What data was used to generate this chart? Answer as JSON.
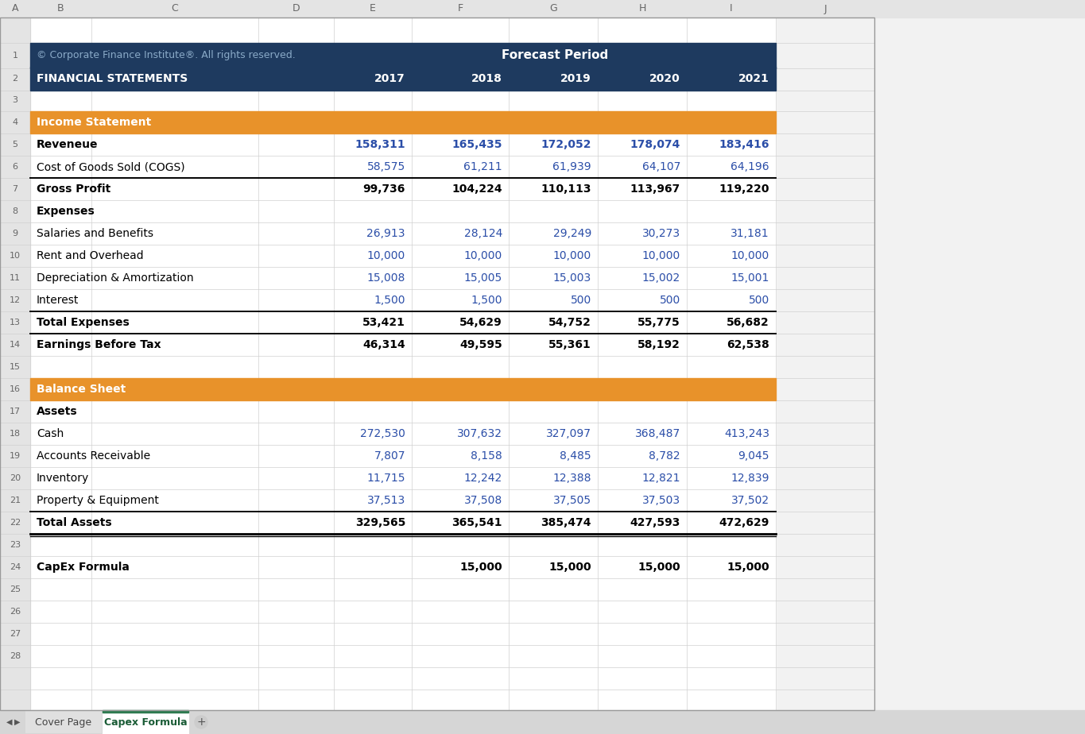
{
  "header_bg": "#1e3a5f",
  "orange_bg": "#e8922a",
  "blue_value_color": "#2b4ea8",
  "black_text": "#000000",
  "white_text": "#ffffff",
  "grid_line_color": "#d0d0d0",
  "sheet_bg": "#f2f2f2",
  "col_header_bg": "#e4e4e4",
  "col_header_text": "#666666",
  "copyright_color": "#8aaac8",
  "col_letters": [
    "A",
    "B",
    "C",
    "D",
    "E",
    "F",
    "G",
    "H",
    "I",
    "J"
  ],
  "row1_left": "© Corporate Finance Institute®. All rights reserved.",
  "row1_center": "Forecast Period",
  "fin_stmt_label": "FINANCIAL STATEMENTS",
  "years": [
    "2017",
    "2018",
    "2019",
    "2020",
    "2021"
  ],
  "rows": [
    {
      "row": 3,
      "label": "",
      "type": "empty",
      "values": [
        "",
        "",
        "",
        "",
        ""
      ]
    },
    {
      "row": 4,
      "label": "Income Statement",
      "type": "section_header",
      "values": [
        "",
        "",
        "",
        "",
        ""
      ]
    },
    {
      "row": 5,
      "label": "Reveneue",
      "bold": true,
      "values": [
        "158,311",
        "165,435",
        "172,052",
        "178,074",
        "183,416"
      ],
      "val_color": "blue"
    },
    {
      "row": 6,
      "label": "Cost of Goods Sold (COGS)",
      "bold": false,
      "values": [
        "58,575",
        "61,211",
        "61,939",
        "64,107",
        "64,196"
      ],
      "val_color": "blue",
      "bottom_border": true
    },
    {
      "row": 7,
      "label": "Gross Profit",
      "bold": true,
      "values": [
        "99,736",
        "104,224",
        "110,113",
        "113,967",
        "119,220"
      ],
      "val_color": "black",
      "top_border": true
    },
    {
      "row": 8,
      "label": "Expenses",
      "bold": true,
      "values": [
        "",
        "",
        "",
        "",
        ""
      ],
      "val_color": "black"
    },
    {
      "row": 9,
      "label": "Salaries and Benefits",
      "bold": false,
      "values": [
        "26,913",
        "28,124",
        "29,249",
        "30,273",
        "31,181"
      ],
      "val_color": "blue"
    },
    {
      "row": 10,
      "label": "Rent and Overhead",
      "bold": false,
      "values": [
        "10,000",
        "10,000",
        "10,000",
        "10,000",
        "10,000"
      ],
      "val_color": "blue"
    },
    {
      "row": 11,
      "label": "Depreciation & Amortization",
      "bold": false,
      "values": [
        "15,008",
        "15,005",
        "15,003",
        "15,002",
        "15,001"
      ],
      "val_color": "blue"
    },
    {
      "row": 12,
      "label": "Interest",
      "bold": false,
      "values": [
        "1,500",
        "1,500",
        "500",
        "500",
        "500"
      ],
      "val_color": "blue",
      "bottom_border": true
    },
    {
      "row": 13,
      "label": "Total Expenses",
      "bold": true,
      "values": [
        "53,421",
        "54,629",
        "54,752",
        "55,775",
        "56,682"
      ],
      "val_color": "black",
      "top_border": true,
      "bottom_border": true
    },
    {
      "row": 14,
      "label": "Earnings Before Tax",
      "bold": true,
      "values": [
        "46,314",
        "49,595",
        "55,361",
        "58,192",
        "62,538"
      ],
      "val_color": "black",
      "top_border": true
    },
    {
      "row": 15,
      "label": "",
      "type": "empty",
      "values": [
        "",
        "",
        "",
        "",
        ""
      ]
    },
    {
      "row": 16,
      "label": "Balance Sheet",
      "type": "section_header",
      "values": [
        "",
        "",
        "",
        "",
        ""
      ]
    },
    {
      "row": 17,
      "label": "Assets",
      "bold": true,
      "values": [
        "",
        "",
        "",
        "",
        ""
      ],
      "val_color": "black"
    },
    {
      "row": 18,
      "label": "Cash",
      "bold": false,
      "values": [
        "272,530",
        "307,632",
        "327,097",
        "368,487",
        "413,243"
      ],
      "val_color": "blue"
    },
    {
      "row": 19,
      "label": "Accounts Receivable",
      "bold": false,
      "values": [
        "7,807",
        "8,158",
        "8,485",
        "8,782",
        "9,045"
      ],
      "val_color": "blue"
    },
    {
      "row": 20,
      "label": "Inventory",
      "bold": false,
      "values": [
        "11,715",
        "12,242",
        "12,388",
        "12,821",
        "12,839"
      ],
      "val_color": "blue"
    },
    {
      "row": 21,
      "label": "Property & Equipment",
      "bold": false,
      "values": [
        "37,513",
        "37,508",
        "37,505",
        "37,503",
        "37,502"
      ],
      "val_color": "blue",
      "bottom_border": true
    },
    {
      "row": 22,
      "label": "Total Assets",
      "bold": true,
      "values": [
        "329,565",
        "365,541",
        "385,474",
        "427,593",
        "472,629"
      ],
      "val_color": "black",
      "top_border": true,
      "double_bottom_border": true
    },
    {
      "row": 23,
      "label": "",
      "type": "empty",
      "values": [
        "",
        "",
        "",
        "",
        ""
      ]
    },
    {
      "row": 24,
      "label": "CapEx Formula",
      "bold": true,
      "values": [
        "",
        "15,000",
        "15,000",
        "15,000",
        "15,000"
      ],
      "val_color": "black"
    },
    {
      "row": 25,
      "label": "",
      "type": "empty",
      "values": [
        "",
        "",
        "",
        "",
        ""
      ]
    },
    {
      "row": 26,
      "label": "",
      "type": "empty",
      "values": [
        "",
        "",
        "",
        "",
        ""
      ]
    },
    {
      "row": 27,
      "label": "",
      "type": "empty",
      "values": [
        "",
        "",
        "",
        "",
        ""
      ]
    },
    {
      "row": 28,
      "label": "",
      "type": "empty",
      "values": [
        "",
        "",
        "",
        "",
        ""
      ]
    }
  ]
}
